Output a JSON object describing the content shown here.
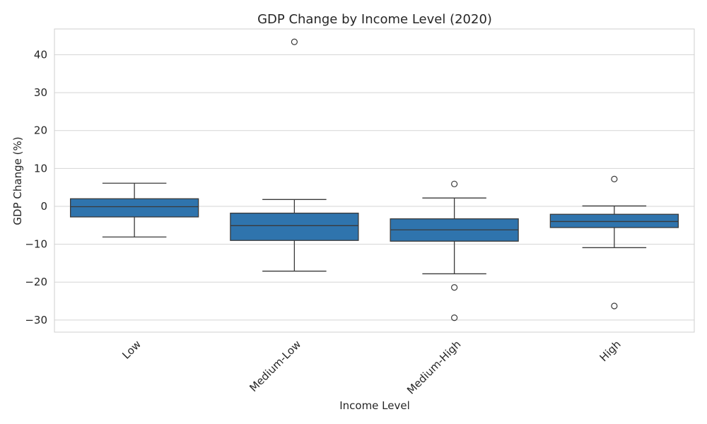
{
  "chart_data": {
    "type": "box",
    "title": "GDP Change by Income Level (2020)",
    "xlabel": "Income Level",
    "ylabel": "GDP Change (%)",
    "ylim": [
      -33.2,
      46.8
    ],
    "yticks": [
      -30,
      -20,
      -10,
      0,
      10,
      20,
      30,
      40
    ],
    "ytick_labels": [
      "−30",
      "−20",
      "−10",
      "0",
      "10",
      "20",
      "30",
      "40"
    ],
    "grid": true,
    "box_color": "#2f74ad",
    "categories": [
      "Low",
      "Medium-Low",
      "Medium-High",
      "High"
    ],
    "boxes": [
      {
        "category": "Low",
        "whisker_low": -8.1,
        "q1": -2.8,
        "median": -0.1,
        "q3": 2.0,
        "whisker_high": 6.1,
        "outliers": []
      },
      {
        "category": "Medium-Low",
        "whisker_low": -17.1,
        "q1": -9.0,
        "median": -5.1,
        "q3": -1.8,
        "whisker_high": 1.8,
        "outliers": [
          43.4
        ]
      },
      {
        "category": "Medium-High",
        "whisker_low": -17.8,
        "q1": -9.2,
        "median": -6.2,
        "q3": -3.3,
        "whisker_high": 2.2,
        "outliers": [
          5.9,
          -21.4,
          -29.4
        ]
      },
      {
        "category": "High",
        "whisker_low": -10.9,
        "q1": -5.6,
        "median": -4.0,
        "q3": -2.1,
        "whisker_high": 0.1,
        "outliers": [
          7.2,
          -26.3
        ]
      }
    ]
  }
}
